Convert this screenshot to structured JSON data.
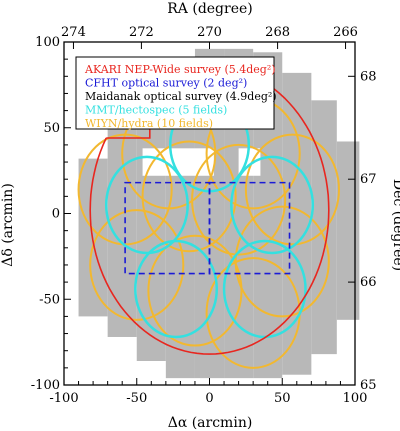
{
  "chart_data": {
    "type": "scatter",
    "xlabel": "Δα (arcmin)",
    "ylabel": "Δδ (arcmin)",
    "top_label": "RA (degree)",
    "right_label": "Dec (degree)",
    "xlim": [
      -100,
      100
    ],
    "ylim": [
      -100,
      100
    ],
    "x_ticks": [
      -100,
      -50,
      0,
      50,
      100
    ],
    "y_ticks": [
      -100,
      -50,
      0,
      50,
      100
    ],
    "ra_ticks": [
      {
        "label": "274",
        "x": -93.5
      },
      {
        "label": "272",
        "x": -46.8
      },
      {
        "label": "270",
        "x": 0
      },
      {
        "label": "268",
        "x": 46.8
      },
      {
        "label": "266",
        "x": 93.5
      }
    ],
    "dec_ticks": [
      {
        "label": "65",
        "y": -100
      },
      {
        "label": "66",
        "y": -40
      },
      {
        "label": "67",
        "y": 20
      },
      {
        "label": "68",
        "y": 80
      }
    ],
    "colors": {
      "akari": "#e8261f",
      "cfht": "#1a1ad6",
      "maidanak": "#b8b8b8",
      "mmt": "#34e0e0",
      "wiyn": "#f2b830"
    },
    "legend": [
      {
        "text": "AKARI NEP-Wide survey (5.4deg²)",
        "color": "#e8261f"
      },
      {
        "text": "CFHT optical survey (2 deg²)",
        "color": "#1a1ad6"
      },
      {
        "text": "Maidanak optical survey (4.9deg²)",
        "color": "#000000"
      },
      {
        "text": "MMT/hectospec (5 fields)",
        "color": "#34e0e0"
      },
      {
        "text": "WIYN/hydra (10 fields)",
        "color": "#f2b830"
      }
    ],
    "maidanak_strips": [
      [
        -80,
        -60,
        32
      ],
      [
        -60,
        -72,
        55
      ],
      [
        -40,
        -86,
        70
      ],
      [
        -20,
        -96,
        84
      ],
      [
        0,
        -96,
        96
      ],
      [
        20,
        -96,
        96
      ],
      [
        40,
        -96,
        94
      ],
      [
        60,
        -94,
        82
      ],
      [
        80,
        -82,
        66
      ],
      [
        95,
        -62,
        42
      ]
    ],
    "maidanak_holes": [
      [
        -46,
        3,
        22,
        38
      ],
      [
        20,
        35,
        22,
        38
      ]
    ],
    "akari_ellipse": {
      "cx": 0,
      "cy": 2,
      "rx": 82,
      "ry": 84,
      "gap_from_deg": 120,
      "gap_to_deg": 150
    },
    "cfht_boxes": [
      [
        -58,
        -35,
        0,
        18
      ],
      [
        0,
        -35,
        55,
        18
      ]
    ],
    "mmt_fields": [
      [
        0,
        40,
        27
      ],
      [
        -43,
        5,
        28
      ],
      [
        43,
        5,
        28
      ],
      [
        -23,
        -44,
        28
      ],
      [
        38,
        -44,
        28
      ]
    ],
    "wiyn_fields": [
      [
        -28,
        35,
        32
      ],
      [
        30,
        35,
        32
      ],
      [
        -58,
        14,
        32
      ],
      [
        57,
        14,
        32
      ],
      [
        -14,
        10,
        32
      ],
      [
        20,
        8,
        32
      ],
      [
        -50,
        -30,
        32
      ],
      [
        50,
        -28,
        32
      ],
      [
        -10,
        -45,
        32
      ],
      [
        30,
        -58,
        32
      ]
    ]
  }
}
